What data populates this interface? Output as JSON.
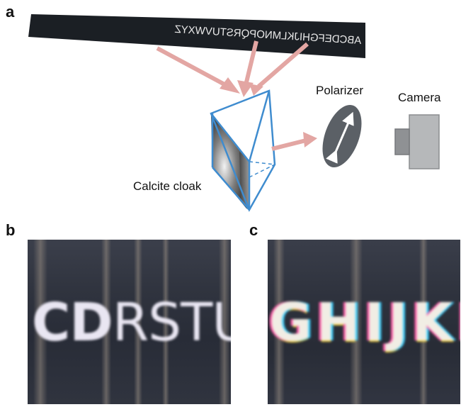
{
  "panels": {
    "a": {
      "letter": "a"
    },
    "b": {
      "letter": "b",
      "photo_text_part1": "CD",
      "photo_text_part2": "RSTUV"
    },
    "c": {
      "letter": "c",
      "photo_text": "GHIJKL"
    }
  },
  "diagram": {
    "banner_text": "ABCDEFGHIJKLMNOPQRSTUVWXYZ",
    "polarizer_label": "Polarizer",
    "camera_label": "Camera",
    "cloak_label": "Calcite cloak"
  },
  "colors": {
    "arrow": "#e3a6a3",
    "prism_edge": "#3f8ccf",
    "banner": "#1b1f24",
    "polarizer": "#5b6066",
    "camera": "#b6b8ba"
  }
}
